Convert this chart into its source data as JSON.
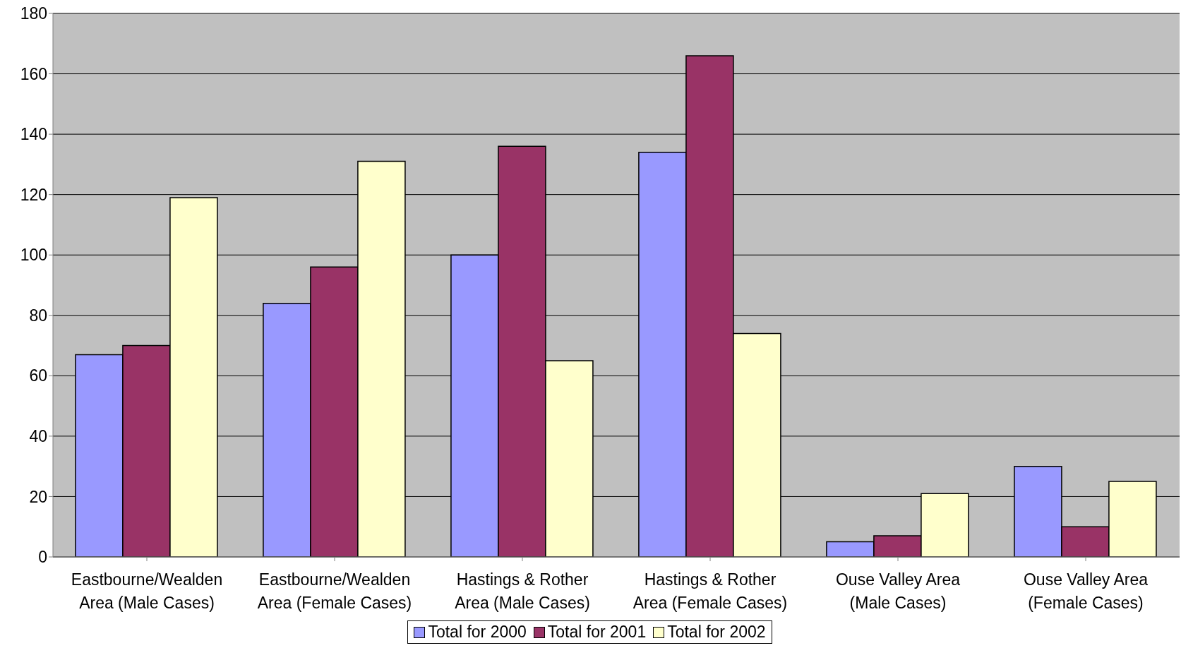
{
  "chart_data": {
    "type": "bar",
    "categories": [
      "Eastbourne/Wealden Area (Male Cases)",
      "Eastbourne/Wealden Area (Female Cases)",
      "Hastings & Rother Area (Male Cases)",
      "Hastings & Rother Area (Female Cases)",
      "Ouse Valley Area (Male Cases)",
      "Ouse Valley Area (Female Cases)"
    ],
    "series": [
      {
        "name": "Total for 2000",
        "color": "#9999ff",
        "values": [
          67,
          84,
          100,
          134,
          5,
          30
        ]
      },
      {
        "name": "Total for 2001",
        "color": "#993366",
        "values": [
          70,
          96,
          136,
          166,
          7,
          10
        ]
      },
      {
        "name": "Total for 2002",
        "color": "#ffffcc",
        "values": [
          119,
          131,
          65,
          74,
          21,
          25
        ]
      }
    ],
    "ylim": [
      0,
      180
    ],
    "yticks": [
      0,
      20,
      40,
      60,
      80,
      100,
      120,
      140,
      160,
      180
    ],
    "grid": "y",
    "legend": "bottom"
  }
}
